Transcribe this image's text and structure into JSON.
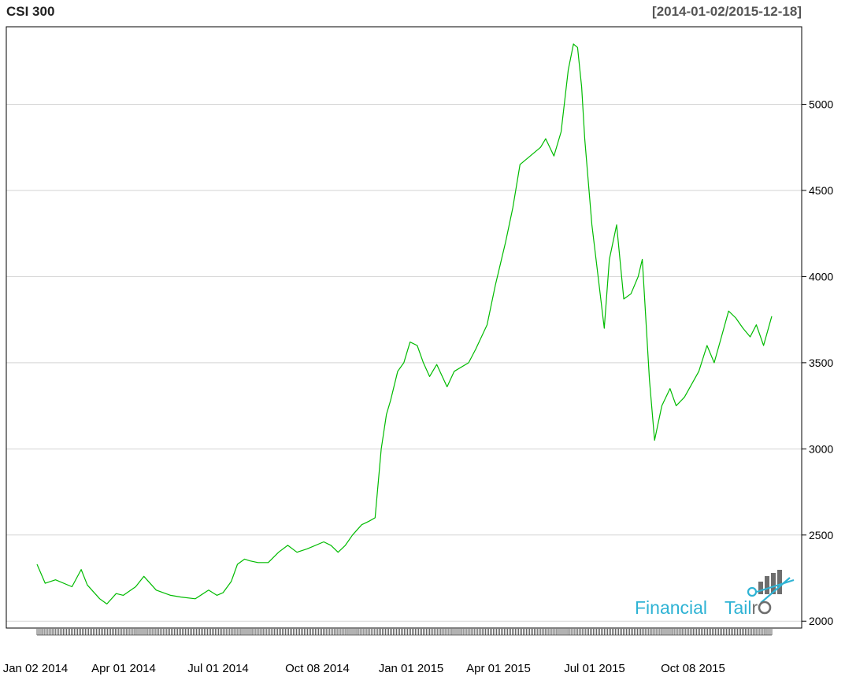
{
  "chart_data": {
    "type": "line",
    "title": "CSI 300",
    "date_range": "[2014-01-02/2015-12-18]",
    "x_tick_labels": [
      "Jan 02 2014",
      "Apr 01 2014",
      "Jul 01 2014",
      "Oct 08 2014",
      "Jan 01 2015",
      "Apr 01 2015",
      "Jul 01 2015",
      "Oct 08 2015"
    ],
    "y_ticks": [
      2000,
      2500,
      3000,
      3500,
      4000,
      4500,
      5000
    ],
    "ylim": [
      1960,
      5450
    ],
    "grid": true,
    "line_color": "#00bb00",
    "series": [
      {
        "x": [
          "2014-01-02",
          "2014-01-10",
          "2014-01-20",
          "2014-02-05",
          "2014-02-14",
          "2014-02-20",
          "2014-03-04",
          "2014-03-11",
          "2014-03-20",
          "2014-03-27",
          "2014-04-08",
          "2014-04-16",
          "2014-04-28",
          "2014-05-12",
          "2014-05-22",
          "2014-06-05",
          "2014-06-18",
          "2014-06-26",
          "2014-07-02",
          "2014-07-10",
          "2014-07-16",
          "2014-07-23",
          "2014-07-28",
          "2014-08-05",
          "2014-08-15",
          "2014-08-25",
          "2014-09-03",
          "2014-09-12",
          "2014-09-22",
          "2014-10-08",
          "2014-10-15",
          "2014-10-22",
          "2014-10-29",
          "2014-11-05",
          "2014-11-14",
          "2014-11-21",
          "2014-11-27",
          "2014-12-03",
          "2014-12-08",
          "2014-12-12",
          "2014-12-19",
          "2014-12-25",
          "2014-12-31",
          "2015-01-07",
          "2015-01-13",
          "2015-01-19",
          "2015-01-26",
          "2015-02-05",
          "2015-02-12",
          "2015-02-26",
          "2015-03-05",
          "2015-03-16",
          "2015-03-24",
          "2015-04-03",
          "2015-04-10",
          "2015-04-17",
          "2015-04-27",
          "2015-05-07",
          "2015-05-12",
          "2015-05-20",
          "2015-05-27",
          "2015-06-03",
          "2015-06-08",
          "2015-06-12",
          "2015-06-16",
          "2015-06-19",
          "2015-06-26",
          "2015-07-02",
          "2015-07-08",
          "2015-07-13",
          "2015-07-20",
          "2015-07-27",
          "2015-08-03",
          "2015-08-10",
          "2015-08-14",
          "2015-08-21",
          "2015-08-26",
          "2015-09-02",
          "2015-09-10",
          "2015-09-16",
          "2015-09-24",
          "2015-10-08",
          "2015-10-16",
          "2015-10-23",
          "2015-10-30",
          "2015-11-06",
          "2015-11-13",
          "2015-11-20",
          "2015-11-27",
          "2015-12-03",
          "2015-12-10",
          "2015-12-18"
        ],
        "values": [
          2330,
          2220,
          2240,
          2200,
          2300,
          2210,
          2130,
          2100,
          2160,
          2150,
          2200,
          2260,
          2180,
          2150,
          2140,
          2130,
          2180,
          2150,
          2165,
          2230,
          2330,
          2360,
          2350,
          2340,
          2340,
          2400,
          2440,
          2400,
          2420,
          2460,
          2440,
          2400,
          2440,
          2500,
          2560,
          2580,
          2600,
          3000,
          3200,
          3280,
          3450,
          3500,
          3620,
          3600,
          3500,
          3420,
          3490,
          3360,
          3450,
          3500,
          3580,
          3720,
          3950,
          4200,
          4400,
          4650,
          4700,
          4750,
          4800,
          4700,
          4840,
          5200,
          5350,
          5330,
          5100,
          4800,
          4300,
          4000,
          3700,
          4100,
          4300,
          3870,
          3900,
          4000,
          4100,
          3400,
          3050,
          3250,
          3350,
          3250,
          3300,
          3450,
          3600,
          3500,
          3650,
          3800,
          3760,
          3700,
          3650,
          3720,
          3600,
          3770
        ]
      }
    ]
  },
  "logo": {
    "word1": "Financial",
    "word2": "Tail",
    "word3": "r"
  }
}
